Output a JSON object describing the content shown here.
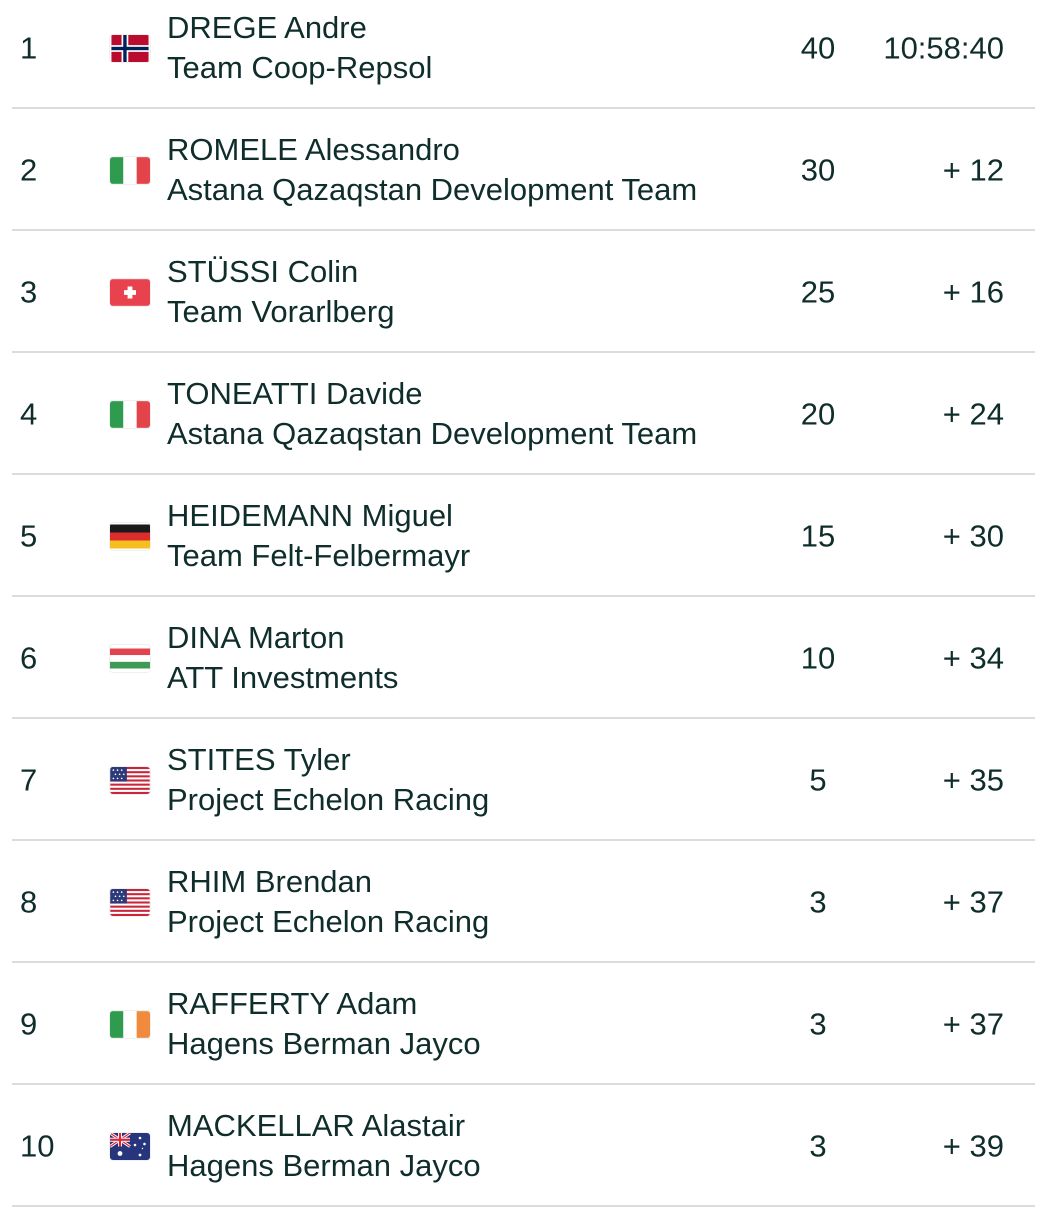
{
  "results": [
    {
      "rank": "1",
      "flag": "norway-flag-icon",
      "rider": "DREGE Andre",
      "team": "Team Coop-Repsol",
      "points": "40",
      "time": "10:58:40"
    },
    {
      "rank": "2",
      "flag": "italy-flag-icon",
      "rider": "ROMELE Alessandro",
      "team": "Astana Qazaqstan Development Team",
      "points": "30",
      "time": "+ 12"
    },
    {
      "rank": "3",
      "flag": "switzerland-flag-icon",
      "rider": "STÜSSI Colin",
      "team": "Team Vorarlberg",
      "points": "25",
      "time": "+ 16"
    },
    {
      "rank": "4",
      "flag": "italy-flag-icon",
      "rider": "TONEATTI Davide",
      "team": "Astana Qazaqstan Development Team",
      "points": "20",
      "time": "+ 24"
    },
    {
      "rank": "5",
      "flag": "germany-flag-icon",
      "rider": "HEIDEMANN Miguel",
      "team": "Team Felt-Felbermayr",
      "points": "15",
      "time": "+ 30"
    },
    {
      "rank": "6",
      "flag": "hungary-flag-icon",
      "rider": "DINA Marton",
      "team": "ATT Investments",
      "points": "10",
      "time": "+ 34"
    },
    {
      "rank": "7",
      "flag": "usa-flag-icon",
      "rider": "STITES Tyler",
      "team": "Project Echelon Racing",
      "points": "5",
      "time": "+ 35"
    },
    {
      "rank": "8",
      "flag": "usa-flag-icon",
      "rider": "RHIM Brendan",
      "team": "Project Echelon Racing",
      "points": "3",
      "time": "+ 37"
    },
    {
      "rank": "9",
      "flag": "ireland-flag-icon",
      "rider": "RAFFERTY Adam",
      "team": "Hagens Berman Jayco",
      "points": "3",
      "time": "+ 37"
    },
    {
      "rank": "10",
      "flag": "australia-flag-icon",
      "rider": "MACKELLAR Alastair",
      "team": "Hagens Berman Jayco",
      "points": "3",
      "time": "+ 39"
    }
  ],
  "colors": {
    "text": "#0f2d2b",
    "divider": "#dcdcdc",
    "background": "#ffffff"
  }
}
